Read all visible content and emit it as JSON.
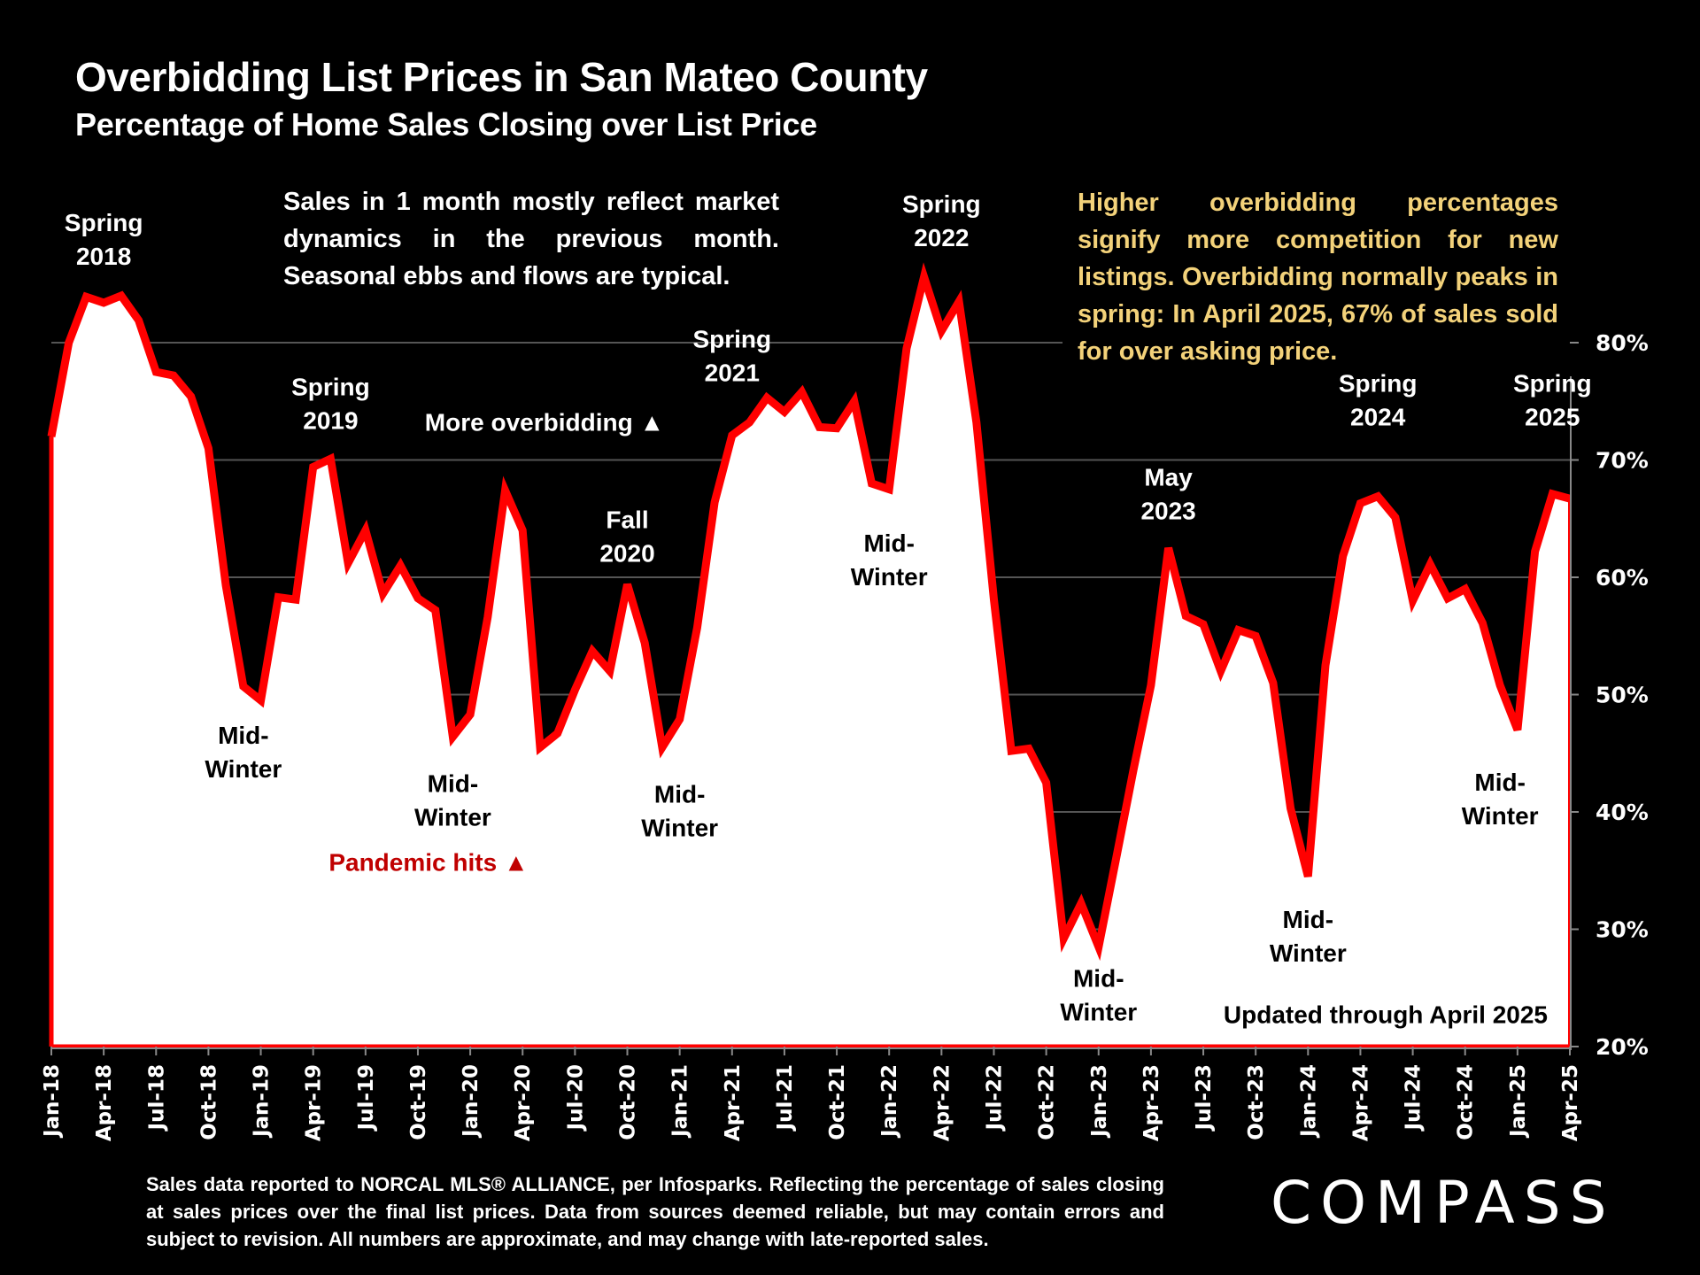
{
  "header": {
    "title": "Overbidding List Prices in San Mateo County",
    "subtitle": "Percentage of Home Sales Closing over List Price"
  },
  "notes": {
    "left": "Sales in 1 month mostly reflect market dynamics in the previous month. Seasonal ebbs and flows are typical.",
    "right": "Higher overbidding percentages signify more competition for new listings. Overbidding normally peaks in spring: In April 2025, 67% of sales sold for over asking price."
  },
  "footer": {
    "disclaimer": "Sales data reported to NORCAL MLS® ALLIANCE, per Infosparks. Reflecting the percentage of sales closing at sales prices over the final list prices. Data from sources deemed reliable, but may contain errors and subject to revision. All numbers are approximate, and may change with late-reported sales.",
    "logo": "COMPASS"
  },
  "colors": {
    "line": "#FF0000",
    "fill": "#FFFFFF",
    "background": "#000000",
    "note_yellow": "#F3D27A",
    "pandemic": "#C00000",
    "gridline": "#555555"
  },
  "chart_data": {
    "type": "area",
    "title": "Overbidding List Prices in San Mateo County",
    "subtitle": "Percentage of Home Sales Closing over List Price",
    "xlabel": "",
    "ylabel": "",
    "y_axis_position": "right",
    "ylim": [
      20,
      80
    ],
    "y_ticks": [
      20,
      30,
      40,
      50,
      60,
      70,
      80
    ],
    "y_tick_labels": [
      "20%",
      "30%",
      "40%",
      "50%",
      "60%",
      "70%",
      "80%"
    ],
    "grid": true,
    "x_tick_labels": [
      "Jan-18",
      "Apr-18",
      "Jul-18",
      "Oct-18",
      "Jan-19",
      "Apr-19",
      "Jul-19",
      "Oct-19",
      "Jan-20",
      "Apr-20",
      "Jul-20",
      "Oct-20",
      "Jan-21",
      "Apr-21",
      "Jul-21",
      "Oct-21",
      "Jan-22",
      "Apr-22",
      "Jul-22",
      "Oct-22",
      "Jan-23",
      "Apr-23",
      "Jul-23",
      "Oct-23",
      "Jan-24",
      "Apr-24",
      "Jul-24",
      "Oct-24",
      "Jan-25",
      "Apr-25"
    ],
    "x": [
      "Jan-18",
      "Feb-18",
      "Mar-18",
      "Apr-18",
      "May-18",
      "Jun-18",
      "Jul-18",
      "Aug-18",
      "Sep-18",
      "Oct-18",
      "Nov-18",
      "Dec-18",
      "Jan-19",
      "Feb-19",
      "Mar-19",
      "Apr-19",
      "May-19",
      "Jun-19",
      "Jul-19",
      "Aug-19",
      "Sep-19",
      "Oct-19",
      "Nov-19",
      "Dec-19",
      "Jan-20",
      "Feb-20",
      "Mar-20",
      "Apr-20",
      "May-20",
      "Jun-20",
      "Jul-20",
      "Aug-20",
      "Sep-20",
      "Oct-20",
      "Nov-20",
      "Dec-20",
      "Jan-21",
      "Feb-21",
      "Mar-21",
      "Apr-21",
      "May-21",
      "Jun-21",
      "Jul-21",
      "Aug-21",
      "Sep-21",
      "Oct-21",
      "Nov-21",
      "Dec-21",
      "Jan-22",
      "Feb-22",
      "Mar-22",
      "Apr-22",
      "May-22",
      "Jun-22",
      "Jul-22",
      "Aug-22",
      "Sep-22",
      "Oct-22",
      "Nov-22",
      "Dec-22",
      "Jan-23",
      "Feb-23",
      "Mar-23",
      "Apr-23",
      "May-23",
      "Jun-23",
      "Jul-23",
      "Aug-23",
      "Sep-23",
      "Oct-23",
      "Nov-23",
      "Dec-23",
      "Jan-24",
      "Feb-24",
      "Mar-24",
      "Apr-24",
      "May-24",
      "Jun-24",
      "Jul-24",
      "Aug-24",
      "Sep-24",
      "Oct-24",
      "Nov-24",
      "Dec-24",
      "Jan-25",
      "Feb-25",
      "Mar-25",
      "Apr-25"
    ],
    "series": [
      {
        "name": "Percentage of sales closing over list price",
        "values": [
          72.0,
          80.0,
          83.9,
          83.4,
          84.0,
          81.9,
          77.5,
          77.2,
          75.4,
          71.0,
          59.3,
          50.7,
          49.5,
          58.3,
          58.1,
          69.4,
          70.1,
          61.2,
          64.0,
          58.6,
          61.0,
          58.2,
          57.2,
          46.4,
          48.3,
          56.6,
          67.4,
          64.0,
          45.5,
          46.7,
          50.4,
          53.7,
          52.0,
          59.4,
          54.4,
          45.5,
          47.9,
          55.7,
          66.4,
          72.1,
          73.2,
          75.3,
          74.1,
          75.8,
          72.8,
          72.7,
          75.0,
          68.0,
          67.5,
          79.5,
          85.6,
          81.0,
          83.5,
          73.2,
          58.1,
          45.2,
          45.4,
          42.5,
          29.2,
          32.2,
          28.5,
          36.0,
          43.6,
          50.8,
          62.5,
          56.7,
          56.0,
          52.0,
          55.5,
          55.0,
          51.0,
          40.3,
          34.5,
          52.5,
          61.8,
          66.3,
          66.9,
          65.1,
          58.0,
          61.1,
          58.2,
          59.0,
          56.1,
          50.8,
          47.0,
          62.2,
          67.1,
          66.7
        ]
      }
    ],
    "annotations": [
      {
        "text": [
          "Spring",
          "2018"
        ],
        "x": "Apr-18",
        "y": 89.5,
        "color": "#FFFFFF"
      },
      {
        "text": [
          "Spring",
          "2019"
        ],
        "x": "May-19",
        "y": 75.5,
        "color": "#FFFFFF"
      },
      {
        "text": [
          "More overbidding ▲"
        ],
        "x": "Feb-20",
        "y": 72.5,
        "color": "#FFFFFF"
      },
      {
        "text": [
          "Fall",
          "2020"
        ],
        "x": "Oct-20",
        "y": 64.2,
        "color": "#FFFFFF"
      },
      {
        "text": [
          "Spring",
          "2021"
        ],
        "x": "Apr-21",
        "y": 79.6,
        "color": "#FFFFFF"
      },
      {
        "text": [
          "Spring",
          "2022"
        ],
        "x": "Apr-22",
        "y": 91.1,
        "color": "#FFFFFF"
      },
      {
        "text": [
          "Mid-",
          "Winter"
        ],
        "x": "Jan-22",
        "y": 62.2,
        "color": "#000000"
      },
      {
        "text": [
          "May",
          "2023"
        ],
        "x": "May-23",
        "y": 67.8,
        "color": "#FFFFFF"
      },
      {
        "text": [
          "Spring",
          "2024"
        ],
        "x": "May-24",
        "y": 75.8,
        "color": "#FFFFFF"
      },
      {
        "text": [
          "Spring",
          "2025"
        ],
        "x": "Mar-25",
        "y": 75.8,
        "color": "#FFFFFF"
      },
      {
        "text": [
          "Mid-",
          "Winter"
        ],
        "x": "Dec-18",
        "y": 45.8,
        "color": "#000000"
      },
      {
        "text": [
          "Mid-",
          "Winter"
        ],
        "x": "Dec-19",
        "y": 41.7,
        "color": "#000000"
      },
      {
        "text": [
          "Mid-",
          "Winter"
        ],
        "x": "Jan-21",
        "y": 40.8,
        "color": "#000000"
      },
      {
        "text": [
          "Mid-",
          "Winter"
        ],
        "x": "Jan-23",
        "y": 25.1,
        "color": "#000000"
      },
      {
        "text": [
          "Mid-",
          "Winter"
        ],
        "x": "Jan-24",
        "y": 30.1,
        "color": "#000000"
      },
      {
        "text": [
          "Mid-",
          "Winter"
        ],
        "x": "Dec-24",
        "y": 41.8,
        "color": "#000000"
      },
      {
        "text": [
          "Pandemic hits ▲"
        ],
        "x": "Mar-19",
        "y": 35.0,
        "color": "#C00000"
      },
      {
        "text": [
          "Updated through April 2025"
        ],
        "x": "Apr-24",
        "y": 22.0,
        "color": "#000000"
      }
    ]
  }
}
